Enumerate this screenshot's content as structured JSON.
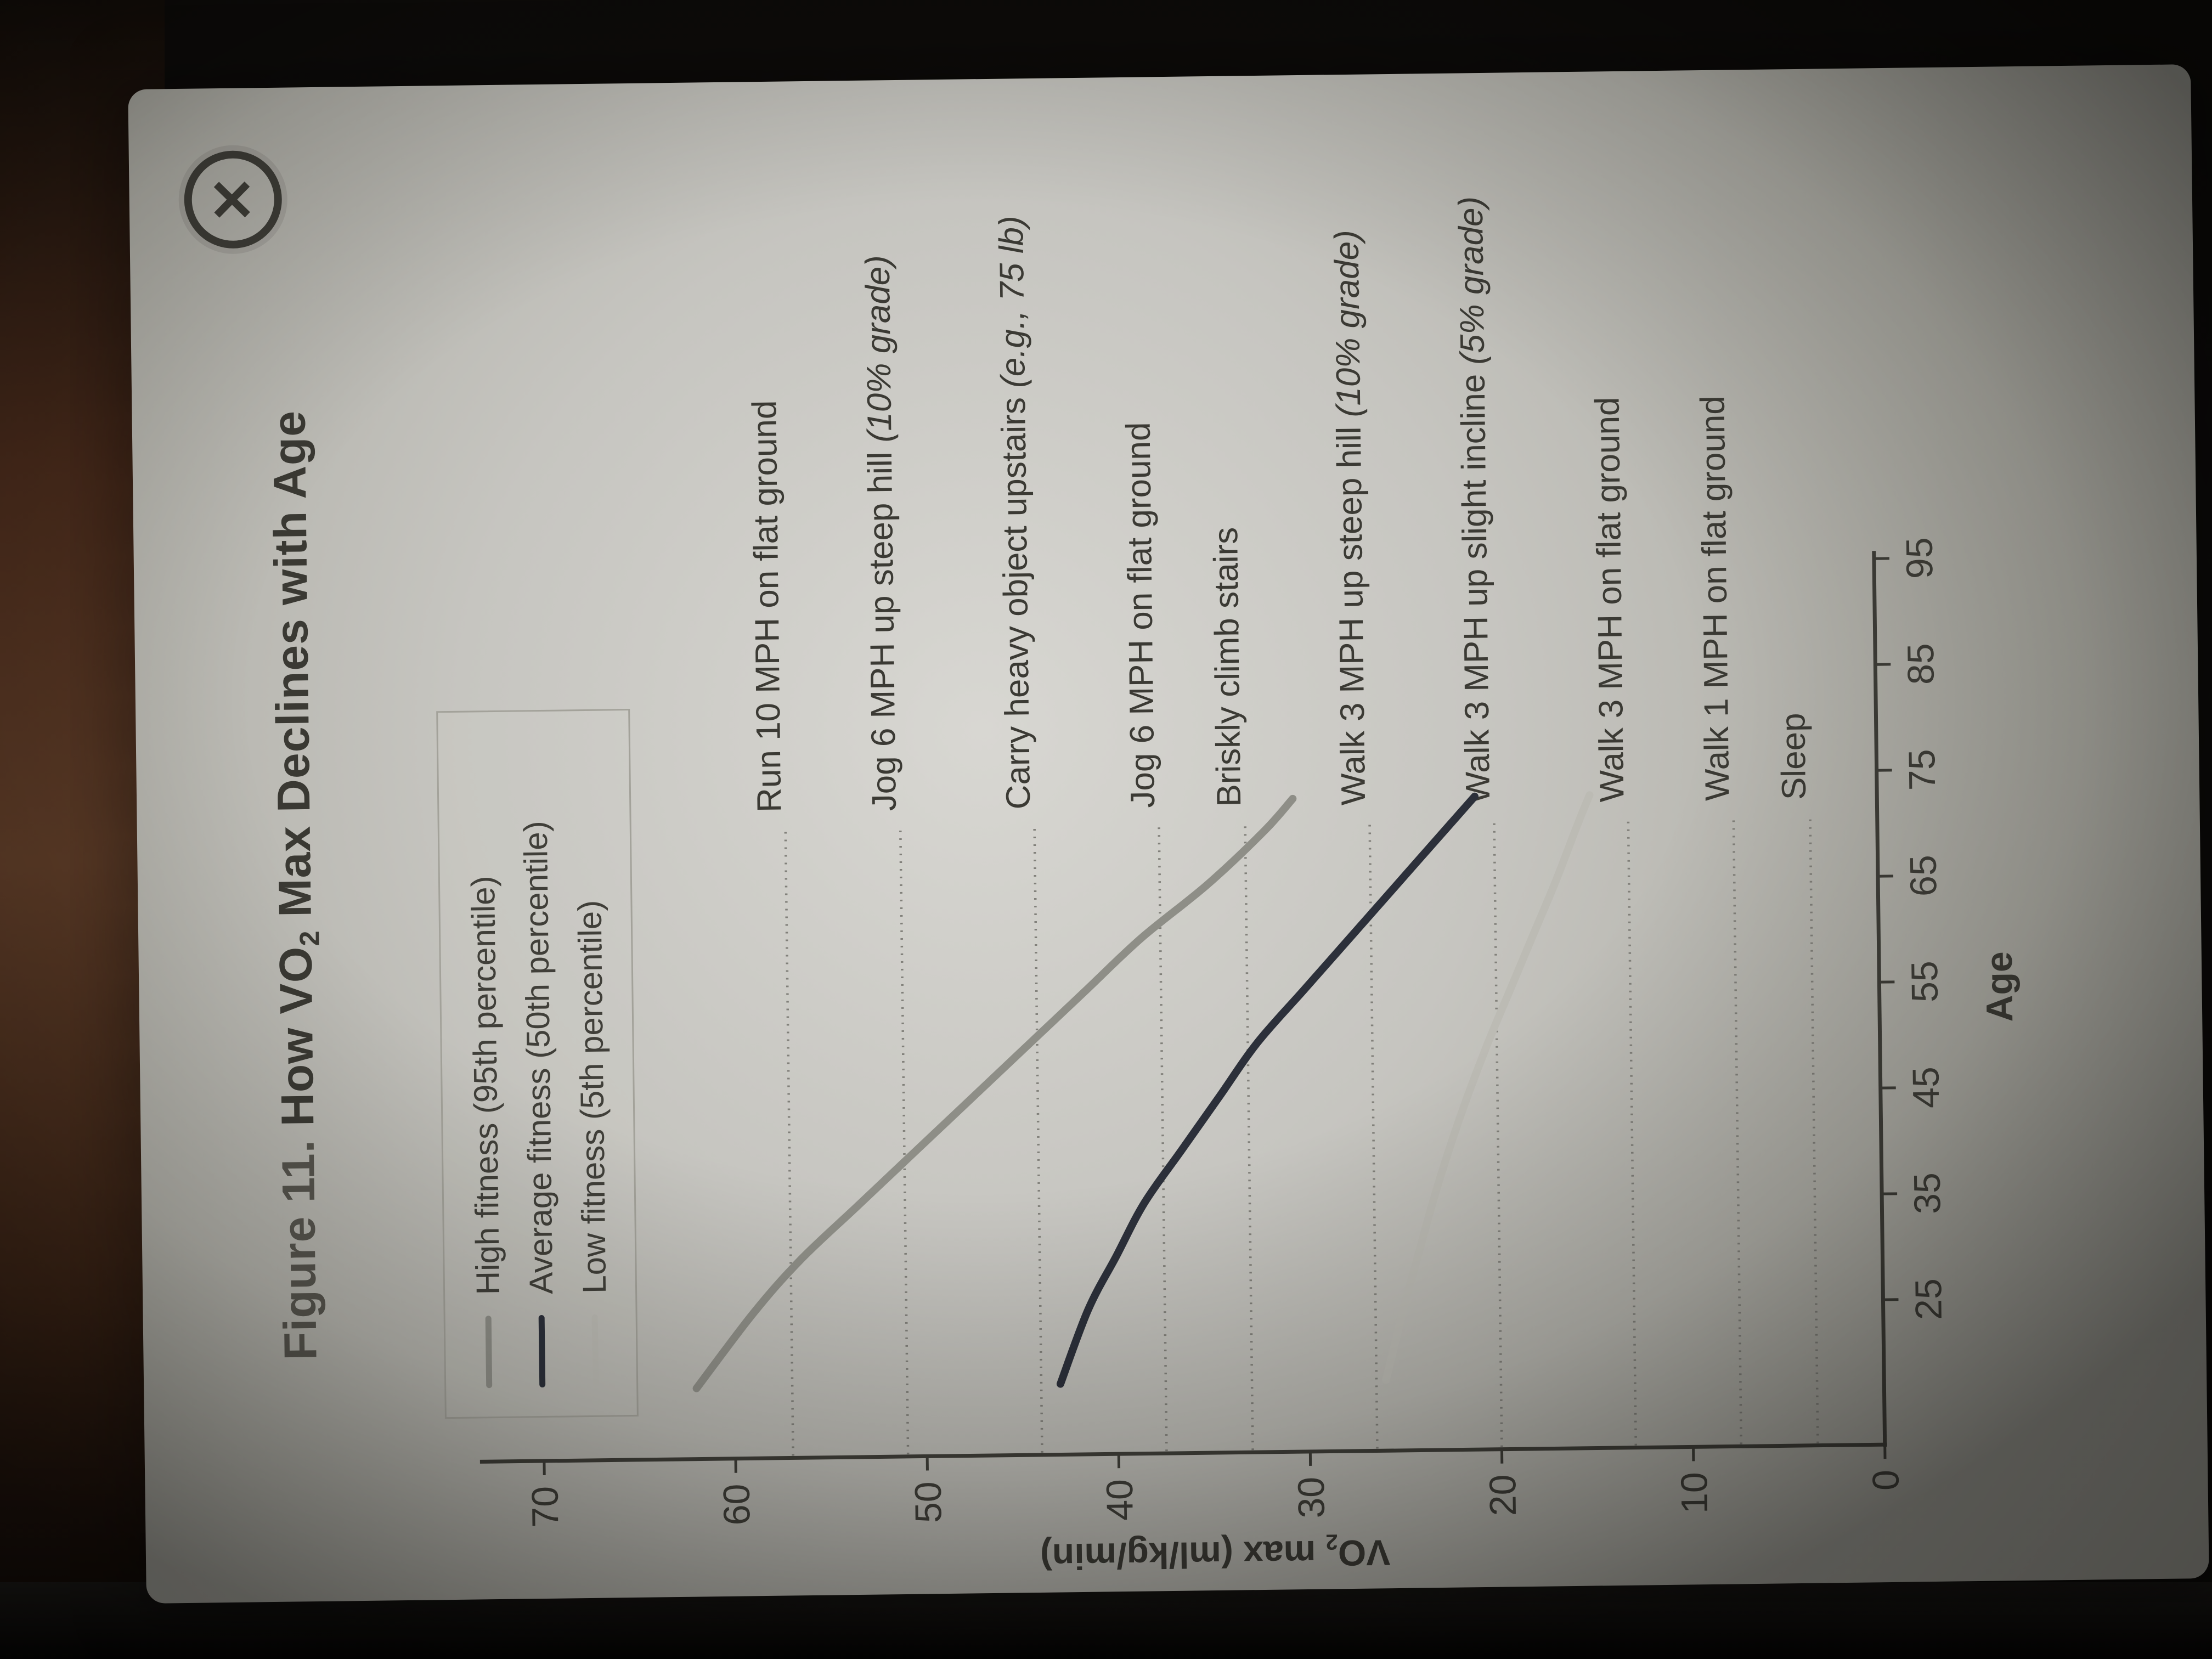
{
  "window": {
    "close_icon": "✕"
  },
  "figure": {
    "title_prefix": "Figure 11.",
    "title_main_pre": " How VO",
    "title_sub": "2",
    "title_main_post": " Max Declines with Age"
  },
  "chart_data": {
    "type": "line",
    "title": "Figure 11. How VO2 Max Declines with Age",
    "xlabel": "Age",
    "ylabel": "VO2 max (ml/kg/min)",
    "ylabel_parts": {
      "pre": "VO",
      "sub": "2",
      "post": " max (ml/kg/min)"
    },
    "x_ticks": [
      25,
      35,
      45,
      55,
      65,
      75,
      85,
      95
    ],
    "y_ticks": [
      0,
      10,
      20,
      30,
      40,
      50,
      60,
      70
    ],
    "xlim": [
      11,
      96
    ],
    "ylim": [
      0,
      73
    ],
    "grid": false,
    "legend_position": "top-left",
    "series": [
      {
        "name": "High fitness (95th percentile)",
        "color": "#8e8e87",
        "x": [
          18,
          25,
          30,
          35,
          40,
          45,
          50,
          55,
          60,
          65,
          70,
          73
        ],
        "values": [
          62,
          59,
          56.5,
          53.5,
          50.5,
          47.5,
          44.5,
          41.5,
          38.5,
          35,
          32,
          30.5
        ]
      },
      {
        "name": "Average fitness (50th percentile)",
        "color": "#2c303a",
        "x": [
          18,
          25,
          30,
          35,
          40,
          45,
          50,
          55,
          60,
          65,
          70,
          73
        ],
        "values": [
          43,
          41.5,
          40,
          38.5,
          36.5,
          34.5,
          32.5,
          30,
          27.5,
          25,
          22.5,
          21
        ]
      },
      {
        "name": "Low fitness (5th percentile)",
        "color": "#bcbbb4",
        "x": [
          18,
          25,
          30,
          35,
          40,
          45,
          50,
          55,
          60,
          65,
          70,
          73
        ],
        "values": [
          26,
          25,
          24.2,
          23.4,
          22.5,
          21.5,
          20.4,
          19.2,
          18,
          16.8,
          15.7,
          15
        ]
      }
    ],
    "reference_lines": [
      {
        "label": "Run 10 MPH on flat ground",
        "italic": "",
        "value": 57
      },
      {
        "label": "Jog 6 MPH up steep hill ",
        "italic": "(10% grade)",
        "value": 51
      },
      {
        "label": "Carry heavy object upstairs ",
        "italic": "(e.g., 75 lb)",
        "value": 44
      },
      {
        "label": "Jog 6 MPH on flat ground",
        "italic": "",
        "value": 37.5
      },
      {
        "label": "Briskly climb stairs",
        "italic": "",
        "value": 33
      },
      {
        "label": "Walk 3 MPH up steep hill ",
        "italic": "(10% grade)",
        "value": 26.5
      },
      {
        "label": "Walk 3 MPH up slight incline ",
        "italic": "(5% grade)",
        "value": 20
      },
      {
        "label": "Walk 3 MPH on flat ground",
        "italic": "",
        "value": 13
      },
      {
        "label": "Walk 1 MPH on flat ground",
        "italic": "",
        "value": 7.5
      },
      {
        "label": "Sleep",
        "italic": "",
        "value": 3.5
      }
    ]
  }
}
